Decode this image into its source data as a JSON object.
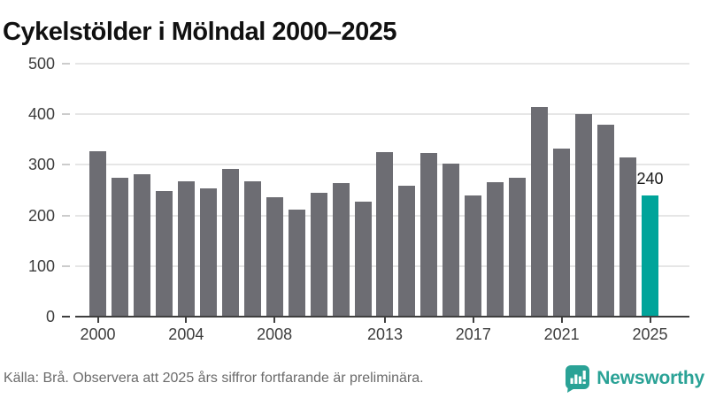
{
  "title": "Cykelstölder i Mölndal 2000–2025",
  "footer": {
    "source_note": "Källa: Brå. Observera att 2025 års siffror fortfarande är preliminära."
  },
  "branding": {
    "name": "Newsworthy",
    "icon": "bar-chart-speech-bubble-icon",
    "teal": "#2aa296"
  },
  "colors": {
    "bar_default": "#6d6d73",
    "bar_highlight": "#00a49a",
    "gridline": "#e6e6e6",
    "axis": "#3f3f3f",
    "tick_label": "#3d3d3d"
  },
  "chart_data": {
    "type": "bar",
    "title": "Cykelstölder i Mölndal 2000–2025",
    "categories": [
      2000,
      2001,
      2002,
      2003,
      2004,
      2005,
      2006,
      2007,
      2008,
      2009,
      2010,
      2011,
      2012,
      2013,
      2014,
      2015,
      2016,
      2017,
      2018,
      2019,
      2020,
      2021,
      2022,
      2023,
      2024,
      2025
    ],
    "values": [
      327,
      275,
      281,
      248,
      267,
      254,
      292,
      267,
      236,
      212,
      245,
      264,
      227,
      325,
      259,
      323,
      302,
      240,
      266,
      275,
      414,
      333,
      401,
      380,
      314,
      240
    ],
    "highlight_category": 2025,
    "highlight_value_label": "240",
    "x_tick_labels": [
      "2000",
      "2004",
      "2008",
      "2013",
      "2017",
      "2021",
      "2025"
    ],
    "y_ticks": [
      0,
      100,
      200,
      300,
      400,
      500
    ],
    "ylim": [
      0,
      500
    ],
    "xlabel": "",
    "ylabel": "",
    "grid": true,
    "legend": false
  }
}
